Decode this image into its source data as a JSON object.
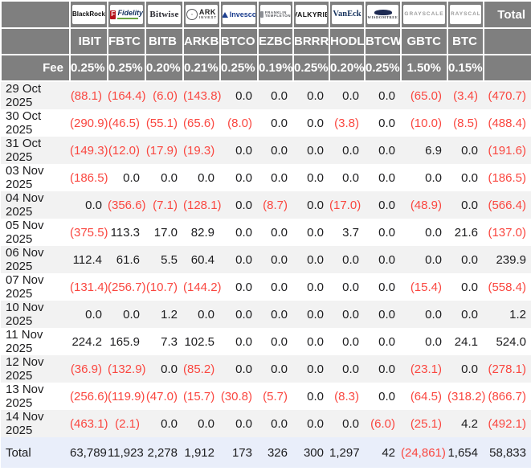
{
  "table": {
    "fee_label": "Fee",
    "total_column_label": "Total",
    "columns": [
      {
        "ticker": "IBIT",
        "fee": "0.25%",
        "issuer": {
          "id": "blackrock",
          "text": "BlackRock"
        }
      },
      {
        "ticker": "FBTC",
        "fee": "0.25%",
        "issuer": {
          "id": "fidelity",
          "mark": "F",
          "text": "Fidelity"
        }
      },
      {
        "ticker": "BITB",
        "fee": "0.20%",
        "issuer": {
          "id": "bitwise",
          "text": "Bitwise"
        }
      },
      {
        "ticker": "ARKB",
        "fee": "0.21%",
        "issuer": {
          "id": "ark",
          "text": "ARK",
          "subtext": "INVEST"
        }
      },
      {
        "ticker": "BTCO",
        "fee": "0.25%",
        "issuer": {
          "id": "invesco",
          "text": "Invesco"
        }
      },
      {
        "ticker": "EZBC",
        "fee": "0.19%",
        "issuer": {
          "id": "franklin",
          "text": "FRANKLIN",
          "subtext": "TEMPLETON"
        }
      },
      {
        "ticker": "BRRR",
        "fee": "0.25%",
        "issuer": {
          "id": "valkyrie",
          "text": "VALKYRIE"
        }
      },
      {
        "ticker": "HODL",
        "fee": "0.20%",
        "issuer": {
          "id": "vaneck",
          "text": "VanEck"
        }
      },
      {
        "ticker": "BTCW",
        "fee": "0.25%",
        "issuer": {
          "id": "wisdomtree",
          "text": "WISDOMTREE"
        }
      },
      {
        "ticker": "GBTC",
        "fee": "1.50%",
        "issuer": {
          "id": "grayscale",
          "text": "GRAYSCALE"
        }
      },
      {
        "ticker": "BTC",
        "fee": "0.15%",
        "issuer": {
          "id": "grayscale",
          "text": "GRAYSCALE"
        }
      }
    ],
    "rows": [
      {
        "date": "29 Oct 2025",
        "values": [
          "(88.1)",
          "(164.4)",
          "(6.0)",
          "(143.8)",
          "0.0",
          "0.0",
          "0.0",
          "0.0",
          "0.0",
          "(65.0)",
          "(3.4)",
          "(470.7)"
        ]
      },
      {
        "date": "30 Oct 2025",
        "values": [
          "(290.9)",
          "(46.5)",
          "(55.1)",
          "(65.6)",
          "(8.0)",
          "0.0",
          "0.0",
          "(3.8)",
          "0.0",
          "(10.0)",
          "(8.5)",
          "(488.4)"
        ]
      },
      {
        "date": "31 Oct 2025",
        "values": [
          "(149.3)",
          "(12.0)",
          "(17.9)",
          "(19.3)",
          "0.0",
          "0.0",
          "0.0",
          "0.0",
          "0.0",
          "6.9",
          "0.0",
          "(191.6)"
        ]
      },
      {
        "date": "03 Nov 2025",
        "values": [
          "(186.5)",
          "0.0",
          "0.0",
          "0.0",
          "0.0",
          "0.0",
          "0.0",
          "0.0",
          "0.0",
          "0.0",
          "0.0",
          "(186.5)"
        ]
      },
      {
        "date": "04 Nov 2025",
        "values": [
          "0.0",
          "(356.6)",
          "(7.1)",
          "(128.1)",
          "0.0",
          "(8.7)",
          "0.0",
          "(17.0)",
          "0.0",
          "(48.9)",
          "0.0",
          "(566.4)"
        ]
      },
      {
        "date": "05 Nov 2025",
        "values": [
          "(375.5)",
          "113.3",
          "17.0",
          "82.9",
          "0.0",
          "0.0",
          "0.0",
          "3.7",
          "0.0",
          "0.0",
          "21.6",
          "(137.0)"
        ]
      },
      {
        "date": "06 Nov 2025",
        "values": [
          "112.4",
          "61.6",
          "5.5",
          "60.4",
          "0.0",
          "0.0",
          "0.0",
          "0.0",
          "0.0",
          "0.0",
          "0.0",
          "239.9"
        ]
      },
      {
        "date": "07 Nov 2025",
        "values": [
          "(131.4)",
          "(256.7)",
          "(10.7)",
          "(144.2)",
          "0.0",
          "0.0",
          "0.0",
          "0.0",
          "0.0",
          "(15.4)",
          "0.0",
          "(558.4)"
        ]
      },
      {
        "date": "10 Nov 2025",
        "values": [
          "0.0",
          "0.0",
          "1.2",
          "0.0",
          "0.0",
          "0.0",
          "0.0",
          "0.0",
          "0.0",
          "0.0",
          "0.0",
          "1.2"
        ]
      },
      {
        "date": "11 Nov 2025",
        "values": [
          "224.2",
          "165.9",
          "7.3",
          "102.5",
          "0.0",
          "0.0",
          "0.0",
          "0.0",
          "0.0",
          "0.0",
          "24.1",
          "524.0"
        ]
      },
      {
        "date": "12 Nov 2025",
        "values": [
          "(36.9)",
          "(132.9)",
          "0.0",
          "(85.2)",
          "0.0",
          "0.0",
          "0.0",
          "0.0",
          "0.0",
          "(23.1)",
          "0.0",
          "(278.1)"
        ]
      },
      {
        "date": "13 Nov 2025",
        "values": [
          "(256.6)",
          "(119.9)",
          "(47.0)",
          "(15.7)",
          "(30.8)",
          "(5.7)",
          "0.0",
          "(8.3)",
          "0.0",
          "(64.5)",
          "(318.2)",
          "(866.7)"
        ]
      },
      {
        "date": "14 Nov 2025",
        "values": [
          "(463.1)",
          "(2.1)",
          "0.0",
          "0.0",
          "0.0",
          "0.0",
          "0.0",
          "0.0",
          "(6.0)",
          "(25.1)",
          "4.2",
          "(492.1)"
        ]
      }
    ],
    "total_row": {
      "label": "Total",
      "values": [
        "63,789",
        "11,923",
        "2,278",
        "1,912",
        "173",
        "326",
        "300",
        "1,297",
        "42",
        "(24,861)",
        "1,654",
        "58,833"
      ]
    }
  },
  "colors": {
    "header_bg": "#7f7f7f",
    "stripe_bg": "#f2f2f2",
    "total_row_bg": "#e9eefa",
    "negative_red": "#fa4740",
    "header_text": "#ffffff",
    "body_text": "#1c1c1e"
  }
}
